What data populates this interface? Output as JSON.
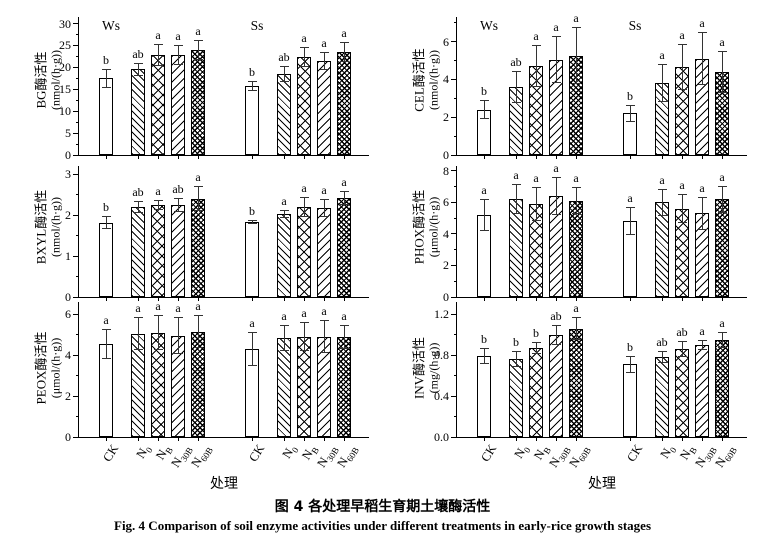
{
  "figure": {
    "caption_zh": "图 4  各处理早稻生育期土壤酶活性",
    "caption_en": "Fig. 4  Comparison of soil enzyme activities under different treatments in early-rice growth stages",
    "x_axis_title": "处理",
    "group_labels": [
      "Ws",
      "Ss"
    ],
    "treatments": [
      "CK",
      "N_0",
      "N_B",
      "N_30B",
      "N_60B"
    ],
    "bar_patterns": [
      "plain",
      "diagonal-hatch",
      "crosshatch",
      "wide-diagonal-hatch",
      "dense-crosshatch"
    ],
    "colors": {
      "axis": "#000000",
      "text": "#000000",
      "bar_fill": "#ffffff",
      "background": "#ffffff"
    }
  },
  "chart_data": [
    {
      "type": "bar",
      "id": "BG",
      "ylabel": "BG酶活性",
      "unit": "(nmol/(h·g))",
      "ylim": [
        0,
        31.5
      ],
      "yticks": [
        0,
        5,
        10,
        15,
        20,
        25,
        30
      ],
      "minor_step": 2.5,
      "tick_decimals": 0,
      "show_group_labels": true,
      "show_x_tick_labels": false,
      "groups": [
        {
          "label": "Ws",
          "values": [
            17.5,
            19.6,
            22.8,
            22.8,
            24.0
          ],
          "errors": [
            2.2,
            1.5,
            2.5,
            2.2,
            2.3
          ],
          "letters": [
            "b",
            "ab",
            "a",
            "a",
            "a"
          ]
        },
        {
          "label": "Ss",
          "values": [
            15.7,
            18.5,
            22.4,
            21.5,
            23.5
          ],
          "errors": [
            1.2,
            1.8,
            2.2,
            2.0,
            2.2
          ],
          "letters": [
            "b",
            "ab",
            "a",
            "a",
            "a"
          ]
        }
      ]
    },
    {
      "type": "bar",
      "id": "CEL",
      "ylabel": "CEL酶活性",
      "unit": "(nmol/(h·g))",
      "ylim": [
        0,
        7.3
      ],
      "yticks": [
        0,
        2,
        4,
        6
      ],
      "minor_step": 1,
      "tick_decimals": 0,
      "show_group_labels": true,
      "show_x_tick_labels": false,
      "groups": [
        {
          "label": "Ws",
          "values": [
            2.4,
            3.6,
            4.7,
            5.05,
            5.25
          ],
          "errors": [
            0.5,
            0.85,
            1.1,
            1.25,
            1.5
          ],
          "letters": [
            "b",
            "ab",
            "a",
            "a",
            "a"
          ]
        },
        {
          "label": "Ss",
          "values": [
            2.2,
            3.8,
            4.65,
            5.1,
            4.4
          ],
          "errors": [
            0.45,
            1.0,
            1.2,
            1.4,
            1.1
          ],
          "letters": [
            "b",
            "a",
            "a",
            "a",
            "a"
          ]
        }
      ]
    },
    {
      "type": "bar",
      "id": "BXYL",
      "ylabel": "BXYL酶活性",
      "unit": "(nmol/(h·g))",
      "ylim": [
        0,
        3.2
      ],
      "yticks": [
        0,
        1,
        2,
        3
      ],
      "minor_step": 0.5,
      "tick_decimals": 0,
      "show_group_labels": false,
      "show_x_tick_labels": false,
      "groups": [
        {
          "label": "Ws",
          "values": [
            1.82,
            2.2,
            2.25,
            2.25,
            2.4
          ],
          "errors": [
            0.17,
            0.15,
            0.12,
            0.18,
            0.3
          ],
          "letters": [
            "b",
            "ab",
            "a",
            "ab",
            "a"
          ]
        },
        {
          "label": "Ss",
          "values": [
            1.83,
            2.02,
            2.2,
            2.18,
            2.42
          ],
          "errors": [
            0.04,
            0.1,
            0.25,
            0.22,
            0.18
          ],
          "letters": [
            "b",
            "a",
            "a",
            "a",
            "a"
          ]
        }
      ]
    },
    {
      "type": "bar",
      "id": "PHOX",
      "ylabel": "PHOX酶活性",
      "unit": "(μmol/(h·g))",
      "ylim": [
        0,
        8.3
      ],
      "yticks": [
        0,
        2,
        4,
        6,
        8
      ],
      "minor_step": 1,
      "tick_decimals": 0,
      "show_group_labels": false,
      "show_x_tick_labels": false,
      "groups": [
        {
          "label": "Ws",
          "values": [
            5.2,
            6.2,
            5.9,
            6.4,
            6.1
          ],
          "errors": [
            1.0,
            0.95,
            1.1,
            1.2,
            0.85
          ],
          "letters": [
            "a",
            "a",
            "a",
            "a",
            "a"
          ]
        },
        {
          "label": "Ss",
          "values": [
            4.8,
            6.0,
            5.6,
            5.3,
            6.2
          ],
          "errors": [
            0.9,
            0.85,
            0.9,
            1.05,
            0.85
          ],
          "letters": [
            "a",
            "a",
            "a",
            "a",
            "a"
          ]
        }
      ]
    },
    {
      "type": "bar",
      "id": "PEOX",
      "ylabel": "PEOX酶活性",
      "unit": "(μmol/(h·g))",
      "ylim": [
        0,
        6.6
      ],
      "yticks": [
        0,
        2,
        4,
        6
      ],
      "minor_step": 1,
      "tick_decimals": 0,
      "show_group_labels": false,
      "show_x_tick_labels": true,
      "groups": [
        {
          "label": "Ws",
          "values": [
            4.55,
            5.05,
            5.1,
            4.95,
            5.15
          ],
          "errors": [
            0.75,
            0.8,
            0.85,
            0.9,
            0.8
          ],
          "letters": [
            "a",
            "a",
            "a",
            "a",
            "a"
          ]
        },
        {
          "label": "Ss",
          "values": [
            4.3,
            4.85,
            4.9,
            4.9,
            4.9
          ],
          "errors": [
            0.85,
            0.65,
            0.7,
            0.8,
            0.6
          ],
          "letters": [
            "a",
            "a",
            "a",
            "a",
            "a"
          ]
        }
      ]
    },
    {
      "type": "bar",
      "id": "INV",
      "ylabel": "INV酶活性",
      "unit": "(mg/(h·g))",
      "ylim": [
        0,
        1.32
      ],
      "yticks": [
        0,
        0.4,
        0.8,
        1.2
      ],
      "minor_step": 0.2,
      "tick_decimals": 1,
      "show_group_labels": false,
      "show_x_tick_labels": true,
      "groups": [
        {
          "label": "Ws",
          "values": [
            0.79,
            0.76,
            0.87,
            1.0,
            1.06
          ],
          "errors": [
            0.08,
            0.08,
            0.06,
            0.1,
            0.11
          ],
          "letters": [
            "b",
            "b",
            "b",
            "ab",
            "a"
          ]
        },
        {
          "label": "Ss",
          "values": [
            0.71,
            0.78,
            0.86,
            0.9,
            0.95
          ],
          "errors": [
            0.08,
            0.06,
            0.08,
            0.05,
            0.08
          ],
          "letters": [
            "b",
            "ab",
            "ab",
            "a",
            "a"
          ]
        }
      ]
    }
  ]
}
